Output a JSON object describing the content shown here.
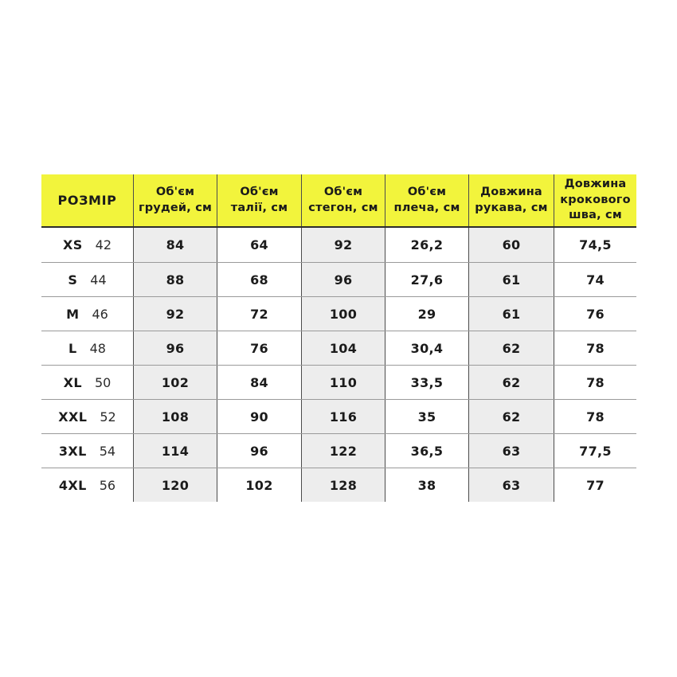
{
  "colors": {
    "page_bg": "#ffffff",
    "header_bg": "#f2f43c",
    "stripe_bg": "#ededed",
    "border_strong": "#2d2d2d",
    "border_dark": "#4c4c4c",
    "border_light": "#9a9a9a",
    "text": "#1b1b1b",
    "text_soft": "#2c2c2c"
  },
  "chart_data": {
    "type": "table",
    "size_header": "РОЗМІР",
    "columns": [
      "Об'єм грудей, см",
      "Об'єм талії, см",
      "Об'єм стегон, см",
      "Об'єм плеча, см",
      "Довжина рукава, см",
      "Довжина крокового шва, см"
    ],
    "rows": [
      {
        "size": "XS",
        "size_num": "42",
        "values": [
          "84",
          "64",
          "92",
          "26,2",
          "60",
          "74,5"
        ]
      },
      {
        "size": "S",
        "size_num": "44",
        "values": [
          "88",
          "68",
          "96",
          "27,6",
          "61",
          "74"
        ]
      },
      {
        "size": "M",
        "size_num": "46",
        "values": [
          "92",
          "72",
          "100",
          "29",
          "61",
          "76"
        ]
      },
      {
        "size": "L",
        "size_num": "48",
        "values": [
          "96",
          "76",
          "104",
          "30,4",
          "62",
          "78"
        ]
      },
      {
        "size": "XL",
        "size_num": "50",
        "values": [
          "102",
          "84",
          "110",
          "33,5",
          "62",
          "78"
        ]
      },
      {
        "size": "XXL",
        "size_num": "52",
        "values": [
          "108",
          "90",
          "116",
          "35",
          "62",
          "78"
        ]
      },
      {
        "size": "3XL",
        "size_num": "54",
        "values": [
          "114",
          "96",
          "122",
          "36,5",
          "63",
          "77,5"
        ]
      },
      {
        "size": "4XL",
        "size_num": "56",
        "values": [
          "120",
          "102",
          "128",
          "38",
          "63",
          "77"
        ]
      }
    ]
  }
}
